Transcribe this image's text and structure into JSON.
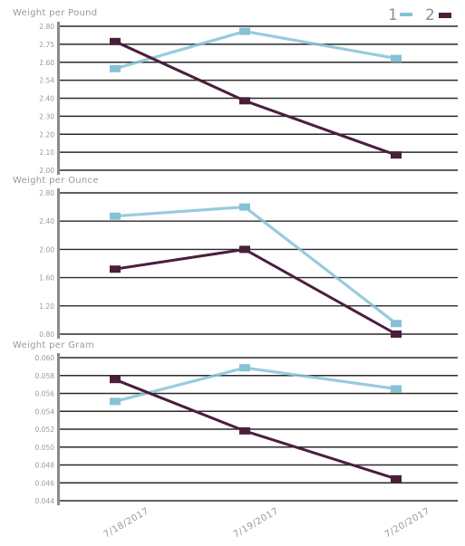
{
  "legend": {
    "label": "1 2",
    "markers": [
      "1",
      "2"
    ]
  },
  "colors": {
    "series_1": "#86c2d6",
    "series_2": "#4a1f3c",
    "grid": "#2a2a2a",
    "axis": "#8a8a8a"
  },
  "chart_data": [
    {
      "type": "line",
      "title": "Weight per Pound",
      "x": [
        "7/18/2017",
        "7/19/2017",
        "7/20/2017"
      ],
      "y_ticks": [
        "2.80",
        "2.75",
        "2.60",
        "2.54",
        "2.40",
        "2.30",
        "2.20",
        "2.10",
        "2.00"
      ],
      "ylim": [
        2.0,
        2.85
      ],
      "series": [
        {
          "name": "1",
          "values": [
            2.6,
            2.82,
            2.66
          ]
        },
        {
          "name": "2",
          "values": [
            2.76,
            2.41,
            2.09
          ]
        }
      ]
    },
    {
      "type": "line",
      "title": "Weight per Ounce",
      "x": [
        "7/18/2017",
        "7/19/2017",
        "7/20/2017"
      ],
      "y_ticks": [
        "2.80",
        "2.40",
        "2.00",
        "1.60",
        "1.20",
        "0.80"
      ],
      "ylim": [
        0.8,
        2.8
      ],
      "series": [
        {
          "name": "1",
          "values": [
            2.47,
            2.6,
            0.95
          ]
        },
        {
          "name": "2",
          "values": [
            1.72,
            2.0,
            0.8
          ]
        }
      ]
    },
    {
      "type": "line",
      "title": "Weight per Gram",
      "x": [
        "7/18/2017",
        "7/19/2017",
        "7/20/2017"
      ],
      "y_ticks": [
        "0.060",
        "0.058",
        "0.056",
        "0.054",
        "0.052",
        "0.050",
        "0.048",
        "0.046",
        "0.044"
      ],
      "ylim": [
        0.044,
        0.061
      ],
      "series": [
        {
          "name": "1",
          "values": [
            0.0558,
            0.0598,
            0.0573
          ]
        },
        {
          "name": "2",
          "values": [
            0.0584,
            0.0523,
            0.0466
          ]
        }
      ]
    }
  ]
}
